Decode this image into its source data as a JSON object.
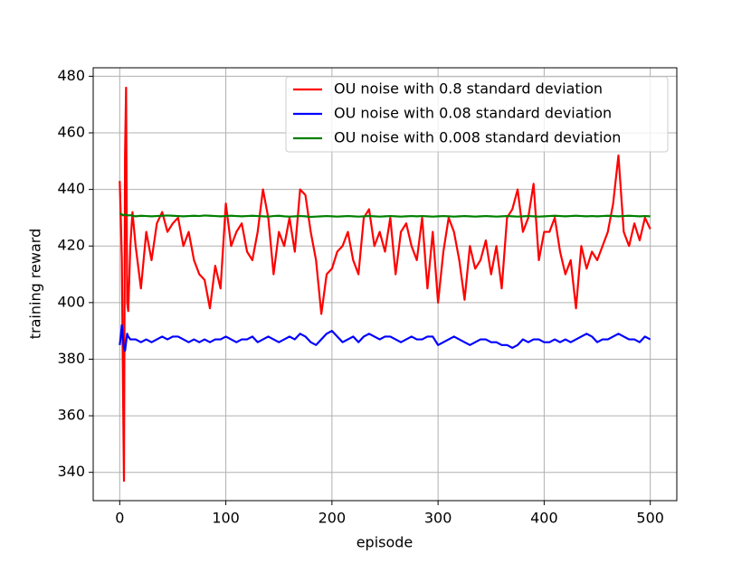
{
  "chart_data": {
    "type": "line",
    "xlabel": "episode",
    "ylabel": "training reward",
    "x": [
      0,
      1,
      2,
      3,
      4,
      5,
      6,
      7,
      8,
      10,
      12,
      15,
      20,
      25,
      30,
      35,
      40,
      45,
      50,
      55,
      60,
      65,
      70,
      75,
      80,
      85,
      90,
      95,
      100,
      105,
      110,
      115,
      120,
      125,
      130,
      135,
      140,
      145,
      150,
      155,
      160,
      165,
      170,
      175,
      180,
      185,
      190,
      195,
      200,
      205,
      210,
      215,
      220,
      225,
      230,
      235,
      240,
      245,
      250,
      255,
      260,
      265,
      270,
      275,
      280,
      285,
      290,
      295,
      300,
      305,
      310,
      315,
      320,
      325,
      330,
      335,
      340,
      345,
      350,
      355,
      360,
      365,
      370,
      375,
      380,
      385,
      390,
      395,
      400,
      405,
      410,
      415,
      420,
      425,
      430,
      435,
      440,
      445,
      450,
      455,
      460,
      465,
      470,
      475,
      480,
      485,
      490,
      495,
      500
    ],
    "series": [
      {
        "name": "OU noise with 0.8 standard deviation",
        "color": "#ff0000",
        "values": [
          443,
          430,
          415,
          373,
          337,
          452,
          476,
          400,
          397,
          420,
          432,
          420,
          405,
          425,
          415,
          428,
          432,
          425,
          428,
          430,
          420,
          425,
          415,
          410,
          408,
          398,
          413,
          405,
          435,
          420,
          425,
          428,
          418,
          415,
          425,
          440,
          430,
          410,
          425,
          420,
          430,
          418,
          440,
          438,
          425,
          415,
          396,
          410,
          412,
          418,
          420,
          425,
          415,
          410,
          430,
          433,
          420,
          425,
          418,
          430,
          410,
          425,
          428,
          420,
          415,
          430,
          405,
          425,
          400,
          418,
          430,
          425,
          415,
          401,
          420,
          412,
          415,
          422,
          410,
          420,
          405,
          430,
          433,
          440,
          425,
          430,
          442,
          415,
          425,
          425,
          430,
          418,
          410,
          415,
          398,
          420,
          412,
          418,
          415,
          420,
          425,
          435,
          452,
          425,
          420,
          428,
          422,
          430,
          426
        ]
      },
      {
        "name": "OU noise with 0.08 standard deviation",
        "color": "#0000ff",
        "values": [
          385,
          388,
          392,
          387,
          384,
          383,
          386,
          389,
          388,
          387,
          387,
          387,
          386,
          387,
          386,
          387,
          388,
          387,
          388,
          388,
          387,
          386,
          387,
          386,
          387,
          386,
          387,
          387,
          388,
          387,
          386,
          387,
          387,
          388,
          386,
          387,
          388,
          387,
          386,
          387,
          388,
          387,
          389,
          388,
          386,
          385,
          387,
          389,
          390,
          388,
          386,
          387,
          388,
          386,
          388,
          389,
          388,
          387,
          388,
          388,
          387,
          386,
          387,
          388,
          387,
          387,
          388,
          388,
          385,
          386,
          387,
          388,
          387,
          386,
          385,
          386,
          387,
          387,
          386,
          386,
          385,
          385,
          384,
          385,
          387,
          386,
          387,
          387,
          386,
          386,
          387,
          386,
          387,
          386,
          387,
          388,
          389,
          388,
          386,
          387,
          387,
          388,
          389,
          388,
          387,
          387,
          386,
          388,
          387
        ]
      },
      {
        "name": "OU noise with 0.008 standard deviation",
        "color": "#008000",
        "values": [
          431.5,
          431.3,
          431.2,
          430.8,
          431,
          431.2,
          431,
          430.9,
          430.8,
          430.9,
          430.7,
          430.5,
          430.7,
          430.6,
          430.5,
          430.6,
          430.7,
          430.8,
          430.7,
          430.6,
          430.5,
          430.6,
          430.7,
          430.6,
          430.8,
          430.7,
          430.6,
          430.5,
          430.6,
          430.7,
          430.6,
          430.5,
          430.6,
          430.7,
          430.6,
          430.5,
          430.4,
          430.6,
          430.7,
          430.5,
          430.4,
          430.5,
          430.6,
          430.5,
          430.3,
          430.4,
          430.5,
          430.6,
          430.5,
          430.4,
          430.5,
          430.6,
          430.5,
          430.4,
          430.5,
          430.6,
          430.5,
          430.4,
          430.5,
          430.6,
          430.5,
          430.4,
          430.5,
          430.6,
          430.5,
          430.6,
          430.5,
          430.4,
          430.5,
          430.6,
          430.5,
          430.4,
          430.5,
          430.6,
          430.5,
          430.4,
          430.5,
          430.6,
          430.5,
          430.4,
          430.5,
          430.6,
          430.5,
          430.4,
          430.5,
          430.6,
          430.5,
          430.4,
          430.5,
          430.6,
          430.7,
          430.6,
          430.5,
          430.6,
          430.7,
          430.6,
          430.5,
          430.6,
          430.5,
          430.6,
          430.7,
          430.6,
          430.5,
          430.6,
          430.7,
          430.6,
          430.5,
          430.6,
          430.5
        ]
      }
    ],
    "xlim": [
      -25,
      525
    ],
    "ylim": [
      330,
      483
    ],
    "xticks": [
      0,
      100,
      200,
      300,
      400,
      500
    ],
    "yticks": [
      340,
      360,
      380,
      400,
      420,
      440,
      460,
      480
    ],
    "grid": true,
    "legend": "upper right"
  }
}
